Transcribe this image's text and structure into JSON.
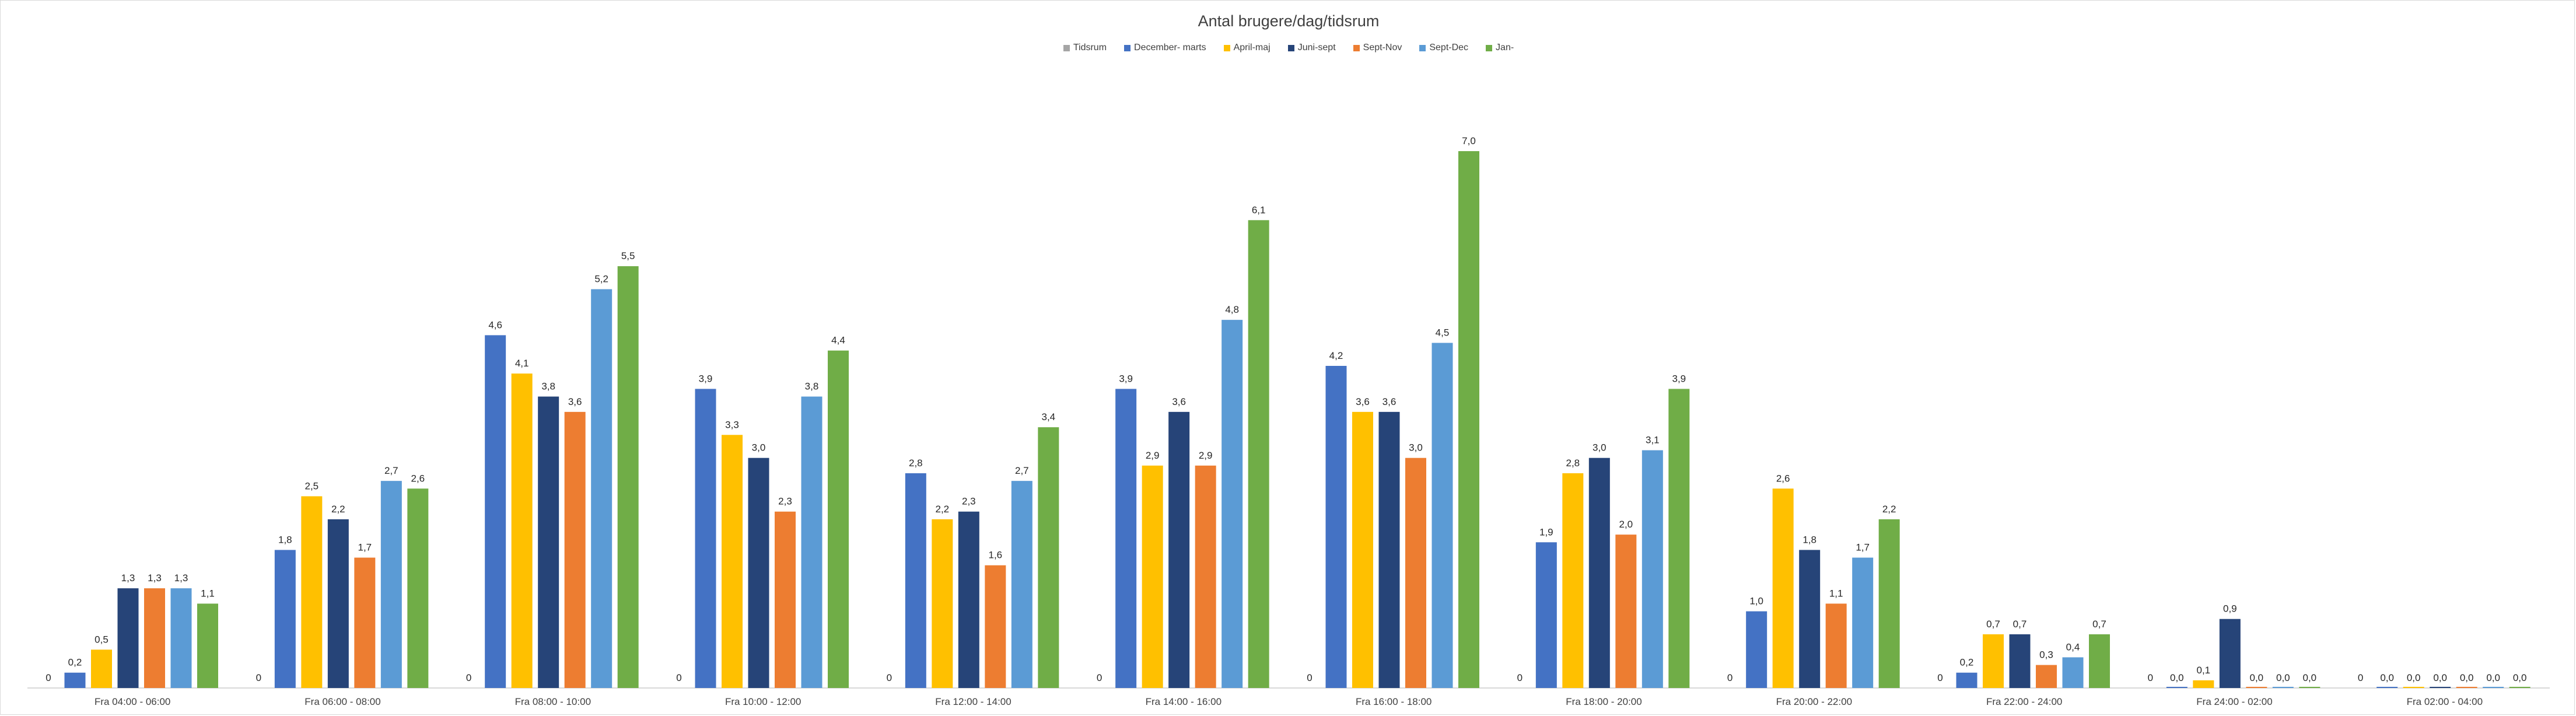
{
  "chart_data": {
    "type": "bar",
    "title": "Antal brugere/dag/tidsrum",
    "xlabel": "",
    "ylabel": "",
    "ylim": [
      0,
      7.0
    ],
    "grid": false,
    "legend_position": "top",
    "categories": [
      "Fra 04:00 - 06:00",
      "Fra 06:00 - 08:00",
      "Fra 08:00 - 10:00",
      "Fra 10:00 - 12:00",
      "Fra 12:00 - 14:00",
      "Fra 14:00 - 16:00",
      "Fra 16:00 - 18:00",
      "Fra 18:00 - 20:00",
      "Fra 20:00 - 22:00",
      "Fra 22:00 - 24:00",
      "Fra 24:00 - 02:00",
      "Fra 02:00 - 04:00"
    ],
    "series": [
      {
        "name": "Tidsrum",
        "color": "#a5a5a5",
        "values": [
          0,
          0,
          0,
          0,
          0,
          0,
          0,
          0,
          0,
          0,
          0,
          0
        ],
        "labels": [
          "0",
          "0",
          "0",
          "0",
          "0",
          "0",
          "0",
          "0",
          "0",
          "0",
          "0",
          "0"
        ]
      },
      {
        "name": "December- marts",
        "color": "#4472c4",
        "values": [
          0.2,
          1.8,
          4.6,
          3.9,
          2.8,
          3.9,
          4.2,
          1.9,
          1.0,
          0.2,
          0.0,
          0.0
        ],
        "labels": [
          "0,2",
          "1,8",
          "4,6",
          "3,9",
          "2,8",
          "3,9",
          "4,2",
          "1,9",
          "1,0",
          "0,2",
          "0,0",
          "0,0"
        ]
      },
      {
        "name": "April-maj",
        "color": "#ffc000",
        "values": [
          0.5,
          2.5,
          4.1,
          3.3,
          2.2,
          2.9,
          3.6,
          2.8,
          2.6,
          0.7,
          0.1,
          0.0
        ],
        "labels": [
          "0,5",
          "2,5",
          "4,1",
          "3,3",
          "2,2",
          "2,9",
          "3,6",
          "2,8",
          "2,6",
          "0,7",
          "0,1",
          "0,0"
        ]
      },
      {
        "name": "Juni-sept",
        "color": "#264478",
        "values": [
          1.3,
          2.2,
          3.8,
          3.0,
          2.3,
          3.6,
          3.6,
          3.0,
          1.8,
          0.7,
          0.9,
          0.0
        ],
        "labels": [
          "1,3",
          "2,2",
          "3,8",
          "3,0",
          "2,3",
          "3,6",
          "3,6",
          "3,0",
          "1,8",
          "0,7",
          "0,9",
          "0,0"
        ]
      },
      {
        "name": "Sept-Nov",
        "color": "#ed7d31",
        "values": [
          1.3,
          1.7,
          3.6,
          2.3,
          1.6,
          2.9,
          3.0,
          2.0,
          1.1,
          0.3,
          0.0,
          0.0
        ],
        "labels": [
          "1,3",
          "1,7",
          "3,6",
          "2,3",
          "1,6",
          "2,9",
          "3,0",
          "2,0",
          "1,1",
          "0,3",
          "0,0",
          "0,0"
        ]
      },
      {
        "name": "Sept-Dec",
        "color": "#5b9bd5",
        "values": [
          1.3,
          2.7,
          5.2,
          3.8,
          2.7,
          4.8,
          4.5,
          3.1,
          1.7,
          0.4,
          0.0,
          0.0
        ],
        "labels": [
          "1,3",
          "2,7",
          "5,2",
          "3,8",
          "2,7",
          "4,8",
          "4,5",
          "3,1",
          "1,7",
          "0,4",
          "0,0",
          "0,0"
        ]
      },
      {
        "name": "Jan-",
        "color": "#70ad47",
        "values": [
          1.1,
          2.6,
          5.5,
          4.4,
          3.4,
          6.1,
          7.0,
          3.9,
          2.2,
          0.7,
          0.0,
          0.0
        ],
        "labels": [
          "1,1",
          "2,6",
          "5,5",
          "4,4",
          "3,4",
          "6,1",
          "7,0",
          "3,9",
          "2,2",
          "0,7",
          "0,0",
          "0,0"
        ]
      }
    ]
  }
}
